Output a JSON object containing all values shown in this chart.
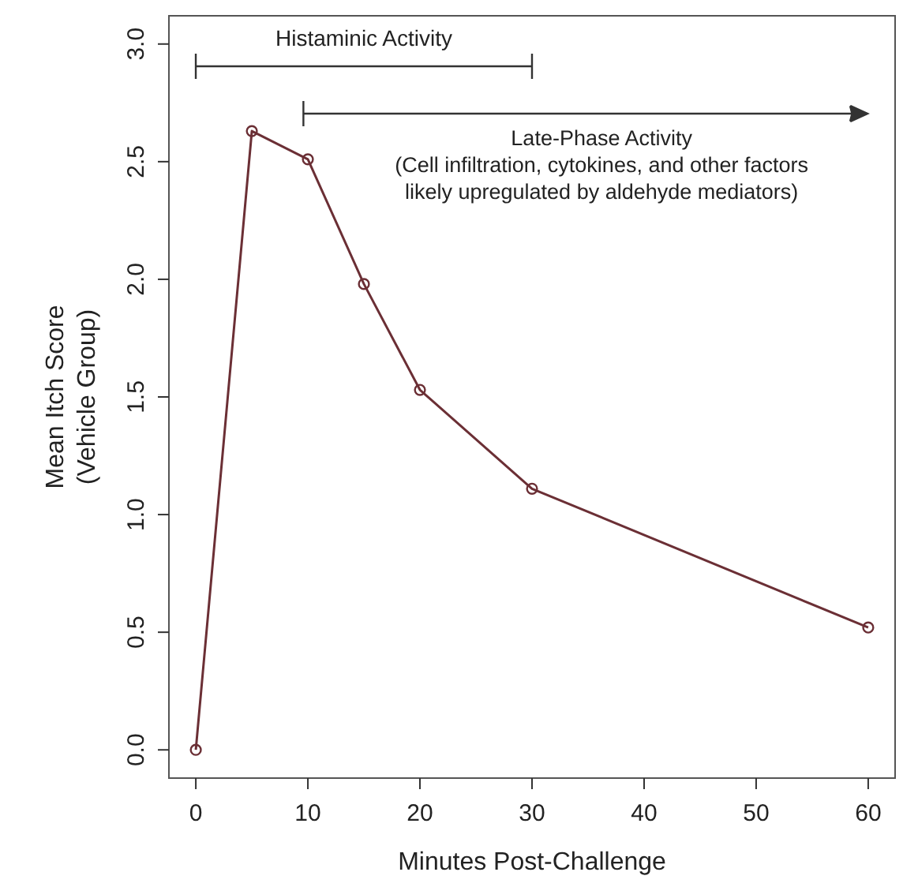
{
  "chart_data": {
    "type": "line",
    "xlabel": "Minutes Post-Challenge",
    "ylabel": "Mean Itch Score\n(Vehicle Group)",
    "x": [
      0,
      5,
      10,
      15,
      20,
      30,
      60
    ],
    "series": [
      {
        "color": "#6b2f35",
        "values": [
          0,
          2.63,
          2.51,
          1.98,
          1.53,
          1.11,
          0.52
        ]
      }
    ],
    "marker": "circle",
    "line_style": "solid",
    "xlim": [
      -2.4,
      62.4
    ],
    "xticks": [
      0,
      10,
      20,
      30,
      40,
      50,
      60
    ],
    "ylim": [
      -0.12,
      3.12
    ],
    "yticks": [
      {
        "value": 0,
        "label": "0.0"
      },
      {
        "value": 0.5,
        "label": "0.5"
      },
      {
        "value": 1,
        "label": "1.0"
      },
      {
        "value": 1.5,
        "label": "1.5"
      },
      {
        "value": 2,
        "label": "2.0"
      },
      {
        "value": 2.5,
        "label": "2.5"
      },
      {
        "value": 3,
        "label": "3.0"
      }
    ],
    "annotations": [
      "Histaminic Activity",
      "Late-Phase Activity\n(Cell infiltration, cytokines, and other factors\nlikely upregulated by aldehyde mediators)"
    ]
  }
}
